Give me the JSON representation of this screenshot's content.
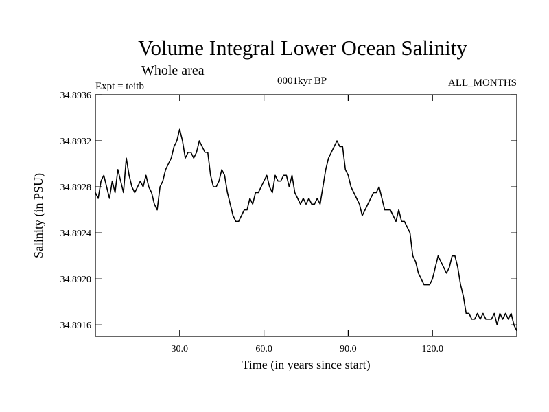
{
  "chart_data": {
    "type": "line",
    "title": "Volume Integral Lower Ocean Salinity",
    "subtitle": "Whole area",
    "experiment_label": "Expt = teitb",
    "period_label": "0001kyr BP",
    "months_label": "ALL_MONTHS",
    "xlabel": "Time (in years since start)",
    "ylabel": "Salinity (in PSU)",
    "xlim": [
      0,
      150
    ],
    "ylim": [
      34.8915,
      34.8936
    ],
    "xticks": [
      30,
      60,
      90,
      120
    ],
    "xtick_labels": [
      "30.0",
      "60.0",
      "90.0",
      "120.0"
    ],
    "yticks": [
      34.8916,
      34.892,
      34.8924,
      34.8928,
      34.8932,
      34.8936
    ],
    "ytick_labels": [
      "34.8916",
      "34.8920",
      "34.8924",
      "34.8928",
      "34.8932",
      "34.8936"
    ],
    "grid": false,
    "series": [
      {
        "name": "Salinity",
        "x": [
          0,
          1,
          2,
          3,
          4,
          5,
          6,
          7,
          8,
          9,
          10,
          11,
          12,
          13,
          14,
          15,
          16,
          17,
          18,
          19,
          20,
          21,
          22,
          23,
          24,
          25,
          26,
          27,
          28,
          29,
          30,
          31,
          32,
          33,
          34,
          35,
          36,
          37,
          38,
          39,
          40,
          41,
          42,
          43,
          44,
          45,
          46,
          47,
          48,
          49,
          50,
          51,
          52,
          53,
          54,
          55,
          56,
          57,
          58,
          59,
          60,
          61,
          62,
          63,
          64,
          65,
          66,
          67,
          68,
          69,
          70,
          71,
          72,
          73,
          74,
          75,
          76,
          77,
          78,
          79,
          80,
          81,
          82,
          83,
          84,
          85,
          86,
          87,
          88,
          89,
          90,
          91,
          92,
          93,
          94,
          95,
          96,
          97,
          98,
          99,
          100,
          101,
          102,
          103,
          104,
          105,
          106,
          107,
          108,
          109,
          110,
          111,
          112,
          113,
          114,
          115,
          116,
          117,
          118,
          119,
          120,
          121,
          122,
          123,
          124,
          125,
          126,
          127,
          128,
          129,
          130,
          131,
          132,
          133,
          134,
          135,
          136,
          137,
          138,
          139,
          140,
          141,
          142,
          143,
          144,
          145,
          146,
          147,
          148,
          149,
          150
        ],
        "values": [
          34.89275,
          34.8927,
          34.89285,
          34.8929,
          34.8928,
          34.8927,
          34.89285,
          34.89275,
          34.89295,
          34.89285,
          34.89275,
          34.89305,
          34.8929,
          34.8928,
          34.89275,
          34.8928,
          34.89285,
          34.8928,
          34.8929,
          34.8928,
          34.89275,
          34.89265,
          34.8926,
          34.8928,
          34.89285,
          34.89295,
          34.893,
          34.89305,
          34.89315,
          34.8932,
          34.8933,
          34.8932,
          34.89305,
          34.8931,
          34.8931,
          34.89305,
          34.8931,
          34.8932,
          34.89315,
          34.8931,
          34.8931,
          34.8929,
          34.8928,
          34.8928,
          34.89285,
          34.89295,
          34.8929,
          34.89275,
          34.89265,
          34.89255,
          34.8925,
          34.8925,
          34.89255,
          34.8926,
          34.8926,
          34.8927,
          34.89265,
          34.89275,
          34.89275,
          34.8928,
          34.89285,
          34.8929,
          34.8928,
          34.89275,
          34.8929,
          34.89285,
          34.89285,
          34.8929,
          34.8929,
          34.8928,
          34.8929,
          34.89275,
          34.8927,
          34.89265,
          34.8927,
          34.89265,
          34.8927,
          34.89265,
          34.89265,
          34.8927,
          34.89265,
          34.8928,
          34.89295,
          34.89305,
          34.8931,
          34.89315,
          34.8932,
          34.89315,
          34.89315,
          34.89295,
          34.8929,
          34.8928,
          34.89275,
          34.8927,
          34.89265,
          34.89255,
          34.8926,
          34.89265,
          34.8927,
          34.89275,
          34.89275,
          34.8928,
          34.8927,
          34.8926,
          34.8926,
          34.8926,
          34.89255,
          34.8925,
          34.8926,
          34.8925,
          34.8925,
          34.89245,
          34.8924,
          34.8922,
          34.89215,
          34.89205,
          34.892,
          34.89195,
          34.89195,
          34.89195,
          34.892,
          34.8921,
          34.8922,
          34.89215,
          34.8921,
          34.89205,
          34.8921,
          34.8922,
          34.8922,
          34.8921,
          34.89195,
          34.89185,
          34.8917,
          34.8917,
          34.89165,
          34.89165,
          34.8917,
          34.89165,
          34.8917,
          34.89165,
          34.89165,
          34.89165,
          34.8917,
          34.8916,
          34.8917,
          34.89165,
          34.8917,
          34.89165,
          34.8917,
          34.8916,
          34.89155
        ]
      }
    ]
  }
}
